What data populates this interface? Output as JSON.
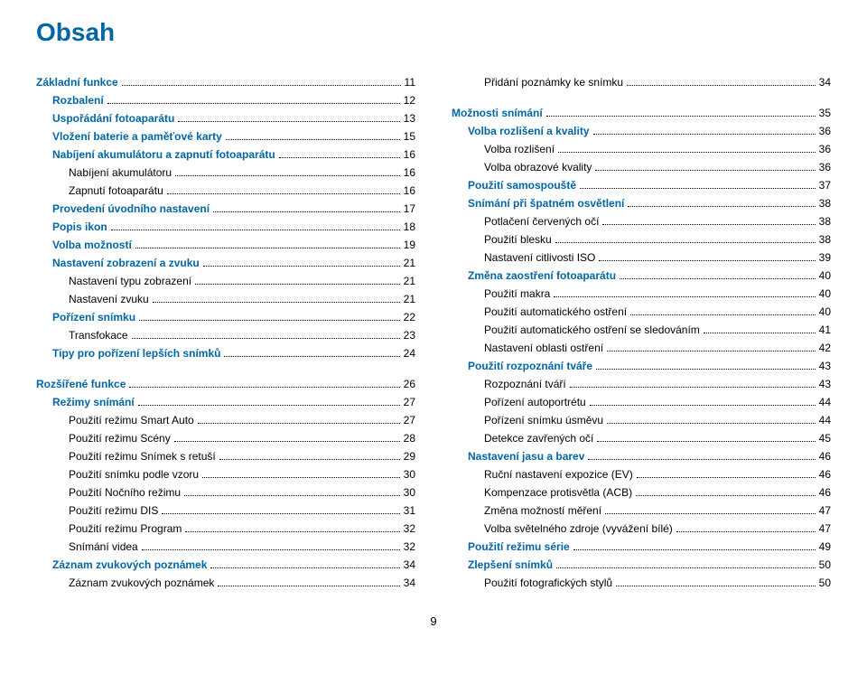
{
  "title": "Obsah",
  "pageNumber": "9",
  "colors": {
    "heading": "#0066a4",
    "text": "#000000",
    "background": "#ffffff"
  },
  "left": [
    {
      "label": "Základní funkce",
      "page": "11",
      "indent": 0,
      "blue": true,
      "bold": true
    },
    {
      "label": "Rozbalení",
      "page": "12",
      "indent": 1,
      "blue": true,
      "bold": true
    },
    {
      "label": "Uspořádání fotoaparátu",
      "page": "13",
      "indent": 1,
      "blue": true,
      "bold": true
    },
    {
      "label": "Vložení baterie a paměťové karty",
      "page": "15",
      "indent": 1,
      "blue": true,
      "bold": true
    },
    {
      "label": "Nabíjení akumulátoru a zapnutí fotoaparátu",
      "page": "16",
      "indent": 1,
      "blue": true,
      "bold": true
    },
    {
      "label": "Nabíjení akumulátoru",
      "page": "16",
      "indent": 2
    },
    {
      "label": "Zapnutí fotoaparátu",
      "page": "16",
      "indent": 2
    },
    {
      "label": "Provedení úvodního nastavení",
      "page": "17",
      "indent": 1,
      "blue": true,
      "bold": true
    },
    {
      "label": "Popis ikon",
      "page": "18",
      "indent": 1,
      "blue": true,
      "bold": true
    },
    {
      "label": "Volba možností",
      "page": "19",
      "indent": 1,
      "blue": true,
      "bold": true
    },
    {
      "label": "Nastavení zobrazení a zvuku",
      "page": "21",
      "indent": 1,
      "blue": true,
      "bold": true
    },
    {
      "label": "Nastavení typu zobrazení",
      "page": "21",
      "indent": 2
    },
    {
      "label": "Nastavení zvuku",
      "page": "21",
      "indent": 2
    },
    {
      "label": "Pořízení snímku",
      "page": "22",
      "indent": 1,
      "blue": true,
      "bold": true
    },
    {
      "label": "Transfokace",
      "page": "23",
      "indent": 2
    },
    {
      "label": "Tipy pro pořízení lepších snímků",
      "page": "24",
      "indent": 1,
      "blue": true,
      "bold": true
    },
    {
      "spacer": true
    },
    {
      "label": "Rozšířené funkce",
      "page": "26",
      "indent": 0,
      "blue": true,
      "bold": true
    },
    {
      "label": "Režimy snímání",
      "page": "27",
      "indent": 1,
      "blue": true,
      "bold": true
    },
    {
      "label": "Použití režimu Smart Auto",
      "page": "27",
      "indent": 2
    },
    {
      "label": "Použití režimu Scény",
      "page": "28",
      "indent": 2
    },
    {
      "label": "Použití režimu Snímek s retuší",
      "page": "29",
      "indent": 2
    },
    {
      "label": "Použití snímku podle vzoru",
      "page": "30",
      "indent": 2
    },
    {
      "label": "Použití Nočního režimu",
      "page": "30",
      "indent": 2
    },
    {
      "label": "Použití režimu DIS",
      "page": "31",
      "indent": 2
    },
    {
      "label": "Použití režimu Program",
      "page": "32",
      "indent": 2
    },
    {
      "label": "Snímání videa",
      "page": "32",
      "indent": 2
    },
    {
      "label": "Záznam zvukových poznámek",
      "page": "34",
      "indent": 1,
      "blue": true,
      "bold": true
    },
    {
      "label": "Záznam zvukových poznámek",
      "page": "34",
      "indent": 2
    }
  ],
  "right": [
    {
      "label": "Přidání poznámky ke snímku",
      "page": "34",
      "indent": 2
    },
    {
      "spacer": true
    },
    {
      "label": "Možnosti snímání",
      "page": "35",
      "indent": 0,
      "blue": true,
      "bold": true
    },
    {
      "label": "Volba rozlišení a kvality",
      "page": "36",
      "indent": 1,
      "blue": true,
      "bold": true
    },
    {
      "label": "Volba rozlišení",
      "page": "36",
      "indent": 2
    },
    {
      "label": "Volba obrazové kvality",
      "page": "36",
      "indent": 2
    },
    {
      "label": "Použití samospouště",
      "page": "37",
      "indent": 1,
      "blue": true,
      "bold": true
    },
    {
      "label": "Snímání při špatném osvětlení",
      "page": "38",
      "indent": 1,
      "blue": true,
      "bold": true
    },
    {
      "label": "Potlačení červených očí",
      "page": "38",
      "indent": 2
    },
    {
      "label": "Použití blesku",
      "page": "38",
      "indent": 2
    },
    {
      "label": "Nastavení citlivosti ISO",
      "page": "39",
      "indent": 2
    },
    {
      "label": "Změna zaostření fotoaparátu",
      "page": "40",
      "indent": 1,
      "blue": true,
      "bold": true
    },
    {
      "label": "Použití makra",
      "page": "40",
      "indent": 2
    },
    {
      "label": "Použití automatického ostření",
      "page": "40",
      "indent": 2
    },
    {
      "label": "Použití automatického ostření se sledováním",
      "page": "41",
      "indent": 2
    },
    {
      "label": "Nastavení oblasti ostření",
      "page": "42",
      "indent": 2
    },
    {
      "label": "Použití rozpoznání tváře",
      "page": "43",
      "indent": 1,
      "blue": true,
      "bold": true
    },
    {
      "label": "Rozpoznání tváří",
      "page": "43",
      "indent": 2
    },
    {
      "label": "Pořízení autoportrétu",
      "page": "44",
      "indent": 2
    },
    {
      "label": "Pořízení snímku úsměvu",
      "page": "44",
      "indent": 2
    },
    {
      "label": "Detekce zavřených očí",
      "page": "45",
      "indent": 2
    },
    {
      "label": "Nastavení jasu a barev",
      "page": "46",
      "indent": 1,
      "blue": true,
      "bold": true
    },
    {
      "label": "Ruční nastavení expozice (EV)",
      "page": "46",
      "indent": 2
    },
    {
      "label": "Kompenzace protisvětla (ACB)",
      "page": "46",
      "indent": 2
    },
    {
      "label": "Změna možností měření",
      "page": "47",
      "indent": 2
    },
    {
      "label": "Volba světelného zdroje (vyvážení bílé)",
      "page": "47",
      "indent": 2
    },
    {
      "label": "Použití režimu série",
      "page": "49",
      "indent": 1,
      "blue": true,
      "bold": true
    },
    {
      "label": "Zlepšení snímků",
      "page": "50",
      "indent": 1,
      "blue": true,
      "bold": true
    },
    {
      "label": "Použití fotografických stylů",
      "page": "50",
      "indent": 2
    }
  ]
}
